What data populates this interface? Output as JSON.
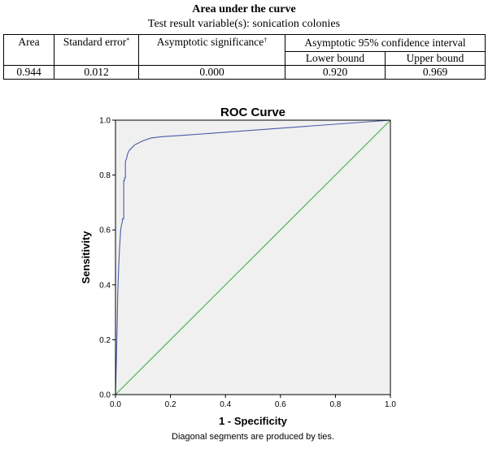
{
  "table": {
    "title": "Area under the curve",
    "subtitle": "Test result variable(s): sonication colonies",
    "headers": {
      "area": "Area",
      "std_error": "Standard error",
      "std_error_mark": "*",
      "asym_sig": "Asymptotic significance",
      "asym_sig_mark": "†",
      "ci": "Asymptotic 95% confidence interval",
      "lower": "Lower bound",
      "upper": "Upper bound"
    },
    "row": {
      "area": "0.944",
      "std_error": "0.012",
      "asym_sig": "0.000",
      "lower": "0.920",
      "upper": "0.969"
    }
  },
  "chart_data": {
    "type": "line",
    "title": "ROC Curve",
    "xlabel": "1 - Specificity",
    "ylabel": "Sensitivity",
    "xlim": [
      0.0,
      1.0
    ],
    "ylim": [
      0.0,
      1.0
    ],
    "x_ticks": [
      "0.0",
      "0.2",
      "0.4",
      "0.6",
      "0.8",
      "1.0"
    ],
    "y_ticks": [
      "0.0",
      "0.2",
      "0.4",
      "0.6",
      "0.8",
      "1.0"
    ],
    "footnote": "Diagonal segments are produced by ties.",
    "grid": false,
    "series": [
      {
        "color": "#4a5aa8",
        "x": [
          0.0,
          0.003,
          0.006,
          0.008,
          0.011,
          0.014,
          0.017,
          0.019,
          0.022,
          0.025,
          0.025,
          0.03,
          0.03,
          0.033,
          0.033,
          0.036,
          0.036,
          0.04,
          0.045,
          0.05,
          0.06,
          0.07,
          0.08,
          0.1,
          0.13,
          0.17,
          0.25,
          1.0
        ],
        "y": [
          0.0,
          0.12,
          0.25,
          0.36,
          0.45,
          0.52,
          0.57,
          0.6,
          0.62,
          0.63,
          0.64,
          0.64,
          0.78,
          0.78,
          0.79,
          0.79,
          0.85,
          0.86,
          0.88,
          0.89,
          0.9,
          0.91,
          0.915,
          0.925,
          0.935,
          0.94,
          0.945,
          1.0
        ]
      },
      {
        "color": "#3cb043",
        "x": [
          0.0,
          1.0
        ],
        "y": [
          0.0,
          1.0
        ]
      }
    ]
  }
}
